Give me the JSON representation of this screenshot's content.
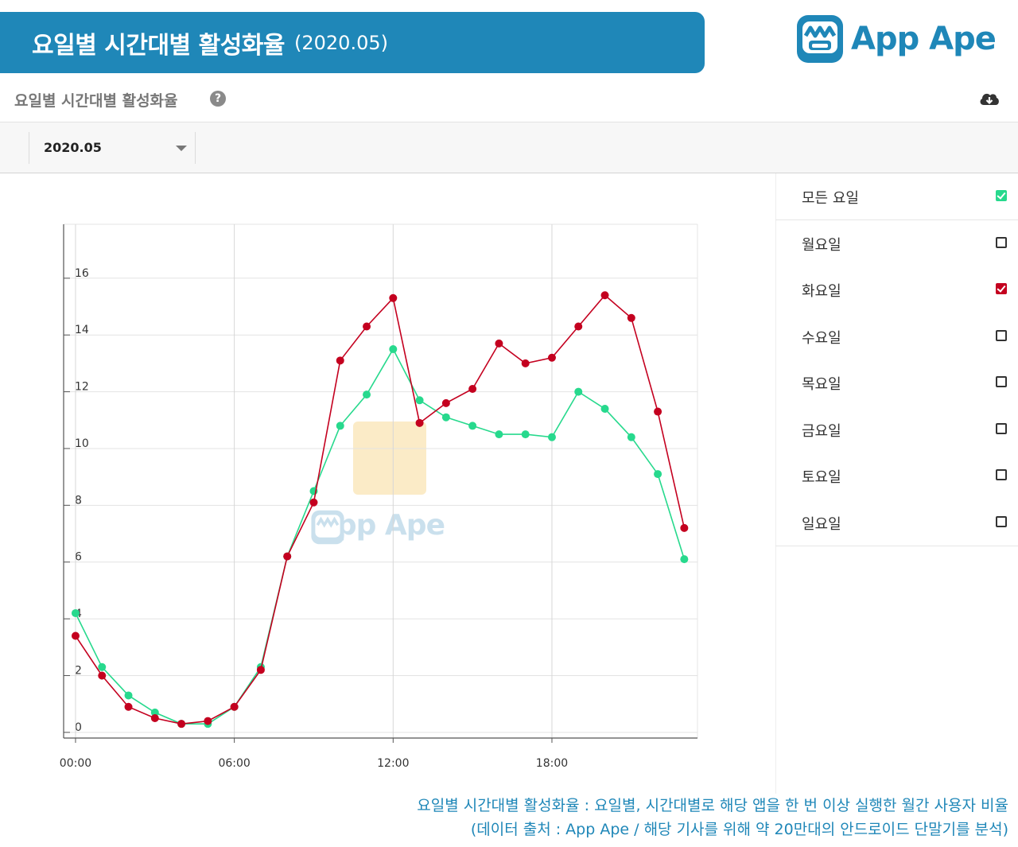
{
  "header": {
    "title": "요일별 시간대별 활성화율",
    "period": "(2020.05)",
    "logo_text": "App Ape"
  },
  "panel": {
    "title": "요일별 시간대별 활성화율",
    "help_icon": "question-circle-icon",
    "download_icon": "cloud-download-icon"
  },
  "filter": {
    "selected_month": "2020.05"
  },
  "legend": {
    "items": [
      {
        "label": "모든 요일",
        "checked": true,
        "color": "#27d98d"
      },
      {
        "label": "월요일",
        "checked": false
      },
      {
        "label": "화요일",
        "checked": true,
        "color": "#c4001f"
      },
      {
        "label": "수요일",
        "checked": false
      },
      {
        "label": "목요일",
        "checked": false
      },
      {
        "label": "금요일",
        "checked": false
      },
      {
        "label": "토요일",
        "checked": false
      },
      {
        "label": "일요일",
        "checked": false
      }
    ]
  },
  "watermark": {
    "text": "App Ape"
  },
  "footnote": {
    "line1": "요일별 시간대별 활성화율 : 요일별, 시간대별로 해당 앱을 한 번 이상 실행한 월간 사용자 비율",
    "line2": "(데이터 출처 : App Ape / 해당 기사를 위해 약 20만대의 안드로이드 단말기를 분석)"
  },
  "chart_data": {
    "type": "line",
    "title": "",
    "xlabel": "",
    "ylabel": "",
    "x": [
      0,
      1,
      2,
      3,
      4,
      5,
      6,
      7,
      8,
      9,
      10,
      11,
      12,
      13,
      14,
      15,
      16,
      17,
      18,
      19,
      20,
      21,
      22,
      23
    ],
    "x_ticks": [
      {
        "value": 0,
        "label": "00:00"
      },
      {
        "value": 6,
        "label": "06:00"
      },
      {
        "value": 12,
        "label": "12:00"
      },
      {
        "value": 18,
        "label": "18:00"
      }
    ],
    "xlim": [
      -0.45,
      23.5
    ],
    "ylim": [
      -0.2,
      17.9
    ],
    "y_ticks": [
      0,
      2,
      4,
      6,
      8,
      10,
      12,
      14,
      16
    ],
    "grid": true,
    "legend_position": "right",
    "series": [
      {
        "name": "모든 요일",
        "color": "#27d98d",
        "values": [
          4.2,
          2.3,
          1.3,
          0.7,
          0.3,
          0.3,
          0.9,
          2.3,
          6.2,
          8.5,
          10.8,
          11.9,
          13.5,
          11.7,
          11.1,
          10.8,
          10.5,
          10.5,
          10.4,
          12.0,
          11.4,
          10.4,
          9.1,
          6.1
        ]
      },
      {
        "name": "화요일",
        "color": "#c4001f",
        "values": [
          3.4,
          2.0,
          0.9,
          0.5,
          0.3,
          0.4,
          0.9,
          2.2,
          6.2,
          8.1,
          13.1,
          14.3,
          15.3,
          10.9,
          11.6,
          12.1,
          13.7,
          13.0,
          13.2,
          14.3,
          15.4,
          14.6,
          11.3,
          7.2
        ]
      }
    ]
  }
}
